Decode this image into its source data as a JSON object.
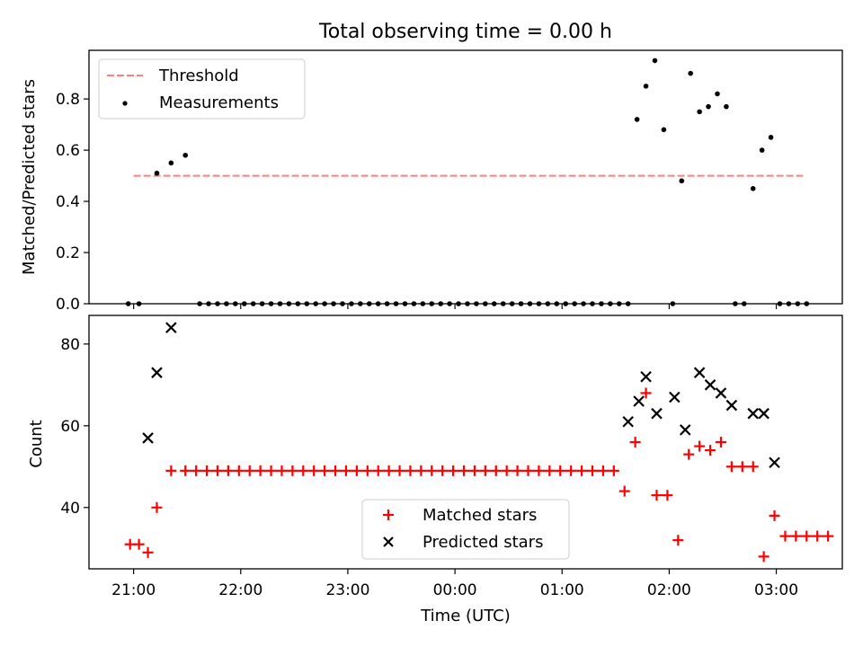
{
  "figure": {
    "title": "Total observing time = 0.00 h"
  },
  "colors": {
    "threshold": "#ff7f7f",
    "measurements": "#000000",
    "matched": "#ff0000",
    "predicted": "#000000"
  },
  "chart_data": [
    {
      "type": "scatter",
      "panel": "top",
      "ylabel": "Matched/Predicted stars",
      "xlabel": "",
      "ylim": [
        0.0,
        0.99
      ],
      "y_ticks": [
        "0.0",
        "0.2",
        "0.4",
        "0.6",
        "0.8"
      ],
      "y_tick_values": [
        0.0,
        0.2,
        0.4,
        0.6,
        0.8
      ],
      "x_ticklabels_shown": false,
      "legend": {
        "placement": "upper-left",
        "entries": [
          "Threshold",
          "Measurements"
        ]
      },
      "threshold": {
        "name": "Threshold",
        "y": 0.5,
        "x": [
          "21:00",
          "03:15"
        ],
        "style": "dashed"
      },
      "series": [
        {
          "name": "Measurements",
          "marker": "dot",
          "x": [
            "20:57",
            "21:03",
            "21:13",
            "21:21",
            "21:29",
            "21:37",
            "21:42",
            "21:47",
            "21:52",
            "21:57",
            "22:02",
            "22:07",
            "22:12",
            "22:17",
            "22:22",
            "22:27",
            "22:32",
            "22:37",
            "22:42",
            "22:47",
            "22:52",
            "22:57",
            "23:02",
            "23:07",
            "23:12",
            "23:17",
            "23:22",
            "23:27",
            "23:32",
            "23:37",
            "23:42",
            "23:47",
            "23:52",
            "23:57",
            "00:02",
            "00:07",
            "00:12",
            "00:17",
            "00:22",
            "00:27",
            "00:32",
            "00:37",
            "00:42",
            "00:47",
            "00:52",
            "00:57",
            "01:02",
            "01:07",
            "01:12",
            "01:17",
            "01:22",
            "01:27",
            "01:32",
            "01:37",
            "01:42",
            "01:47",
            "01:52",
            "01:57",
            "02:02",
            "02:07",
            "02:12",
            "02:17",
            "02:22",
            "02:27",
            "02:32",
            "02:37",
            "02:42",
            "02:47",
            "02:52",
            "02:57",
            "03:02",
            "03:07",
            "03:12",
            "03:17"
          ],
          "y": [
            0,
            0,
            0.51,
            0.55,
            0.58,
            0,
            0,
            0,
            0,
            0,
            0,
            0,
            0,
            0,
            0,
            0,
            0,
            0,
            0,
            0,
            0,
            0,
            0,
            0,
            0,
            0,
            0,
            0,
            0,
            0,
            0,
            0,
            0,
            0,
            0,
            0,
            0,
            0,
            0,
            0,
            0,
            0,
            0,
            0,
            0,
            0,
            0,
            0,
            0,
            0,
            0,
            0,
            0,
            0,
            0.72,
            0.85,
            0.95,
            0.68,
            0,
            0.48,
            0.9,
            0.75,
            0.77,
            0.82,
            0.77,
            0,
            0,
            0.45,
            0.6,
            0.65,
            0,
            0,
            0,
            0
          ]
        }
      ]
    },
    {
      "type": "scatter",
      "panel": "bottom",
      "xlabel": "Time (UTC)",
      "ylabel": "Count",
      "xlim": [
        "20:35",
        "03:37"
      ],
      "ylim": [
        25,
        87
      ],
      "x_ticks": [
        "21:00",
        "22:00",
        "23:00",
        "00:00",
        "01:00",
        "02:00",
        "03:00"
      ],
      "y_ticks": [
        "40",
        "60",
        "80"
      ],
      "y_tick_values": [
        40,
        60,
        80
      ],
      "legend": {
        "placement": "lower-center",
        "entries": [
          "Matched stars",
          "Predicted stars"
        ]
      },
      "series": [
        {
          "name": "Matched stars",
          "marker": "plus",
          "x": [
            "20:58",
            "21:03",
            "21:08",
            "21:13",
            "21:21",
            "21:29",
            "21:35",
            "21:41",
            "21:47",
            "21:53",
            "21:59",
            "22:05",
            "22:11",
            "22:17",
            "22:23",
            "22:29",
            "22:35",
            "22:41",
            "22:47",
            "22:53",
            "22:59",
            "23:05",
            "23:11",
            "23:17",
            "23:23",
            "23:29",
            "23:35",
            "23:41",
            "23:47",
            "23:53",
            "23:59",
            "00:05",
            "00:11",
            "00:17",
            "00:23",
            "00:29",
            "00:35",
            "00:41",
            "00:47",
            "00:53",
            "00:59",
            "01:05",
            "01:11",
            "01:17",
            "01:23",
            "01:29",
            "01:35",
            "01:41",
            "01:47",
            "01:53",
            "01:59",
            "02:05",
            "02:11",
            "02:17",
            "02:23",
            "02:29",
            "02:35",
            "02:41",
            "02:47",
            "02:53",
            "02:59",
            "03:05",
            "03:11",
            "03:17",
            "03:23",
            "03:29"
          ],
          "y": [
            31,
            31,
            29,
            40,
            49,
            49,
            49,
            49,
            49,
            49,
            49,
            49,
            49,
            49,
            49,
            49,
            49,
            49,
            49,
            49,
            49,
            49,
            49,
            49,
            49,
            49,
            49,
            49,
            49,
            49,
            49,
            49,
            49,
            49,
            49,
            49,
            49,
            49,
            49,
            49,
            49,
            49,
            49,
            49,
            49,
            49,
            44,
            56,
            68,
            43,
            43,
            32,
            53,
            55,
            54,
            56,
            50,
            50,
            50,
            28,
            38,
            33,
            33,
            33,
            33,
            33
          ]
        },
        {
          "name": "Predicted stars",
          "marker": "x",
          "x": [
            "21:08",
            "21:13",
            "21:21",
            "01:37",
            "01:43",
            "01:47",
            "01:53",
            "02:03",
            "02:09",
            "02:17",
            "02:23",
            "02:29",
            "02:35",
            "02:47",
            "02:53",
            "02:59"
          ],
          "y": [
            57,
            73,
            84,
            61,
            66,
            72,
            63,
            67,
            59,
            73,
            70,
            68,
            65,
            63,
            63,
            51
          ]
        }
      ]
    }
  ]
}
